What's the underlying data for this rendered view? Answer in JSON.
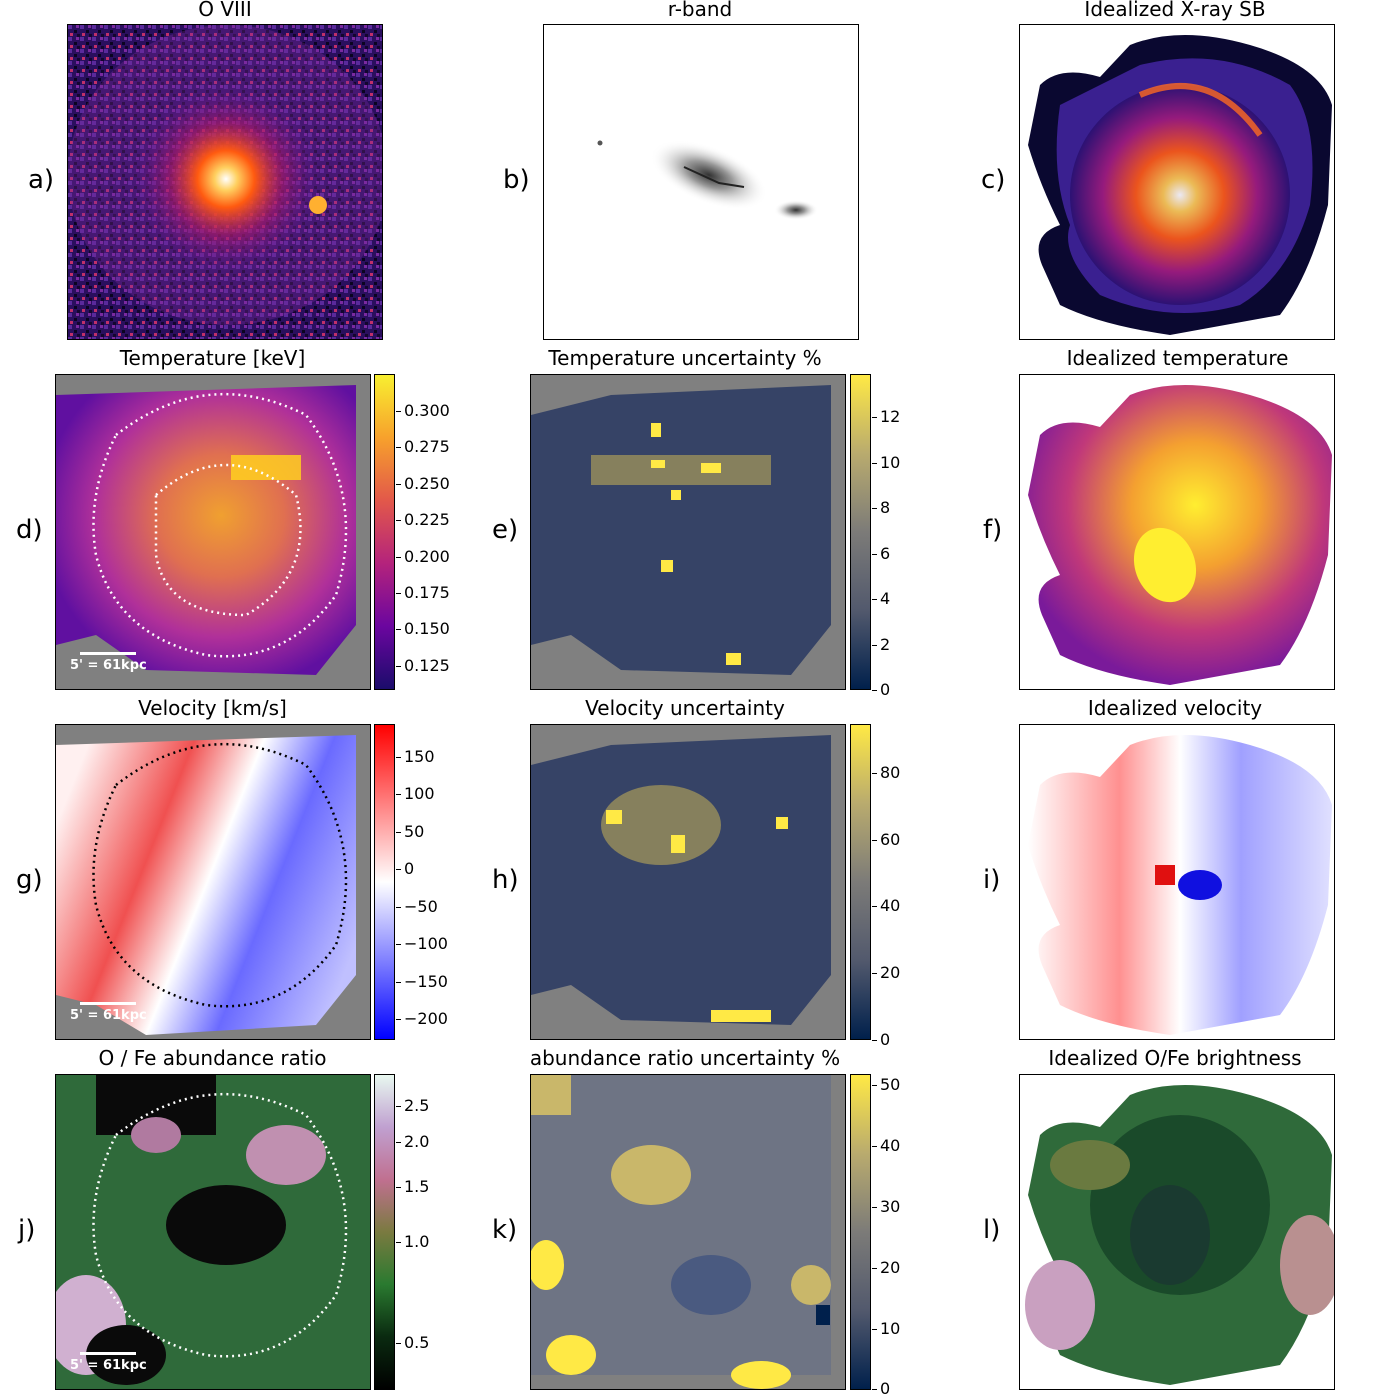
{
  "figure": {
    "labels": [
      "a)",
      "b)",
      "c)",
      "d)",
      "e)",
      "f)",
      "g)",
      "h)",
      "i)",
      "j)",
      "k)",
      "l)"
    ],
    "titles": [
      "O VIII",
      "r-band",
      "Idealized X-ray SB",
      "Temperature [keV]",
      "Temperature uncertainty %",
      "Idealized temperature",
      "Velocity [km/s]",
      "Velocity uncertainty",
      "Idealized velocity",
      "O / Fe abundance ratio",
      "abundance ratio uncertainty %",
      "Idealized O/Fe brightness"
    ],
    "scalebar": "5' = 61kpc",
    "colorbars": {
      "temperature": [
        "0.300",
        "0.275",
        "0.250",
        "0.225",
        "0.200",
        "0.175",
        "0.150",
        "0.125"
      ],
      "temp_uncertainty": [
        "12",
        "10",
        "8",
        "6",
        "4",
        "2",
        "0"
      ],
      "velocity": [
        "150",
        "100",
        "50",
        "0",
        "−50",
        "−100",
        "−150",
        "−200"
      ],
      "vel_uncertainty": [
        "80",
        "60",
        "40",
        "20",
        "0"
      ],
      "abundance": [
        "2.5",
        "2.0",
        "1.5",
        "1.0",
        "0.5"
      ],
      "abund_uncertainty": [
        "50",
        "40",
        "30",
        "20",
        "10",
        "0"
      ]
    },
    "colors": {
      "missing": "#808080",
      "cividis_low": "#00204c",
      "cividis_high": "#ffe945",
      "bwr_low": "#0000ff",
      "bwr_high": "#ff0000"
    }
  }
}
